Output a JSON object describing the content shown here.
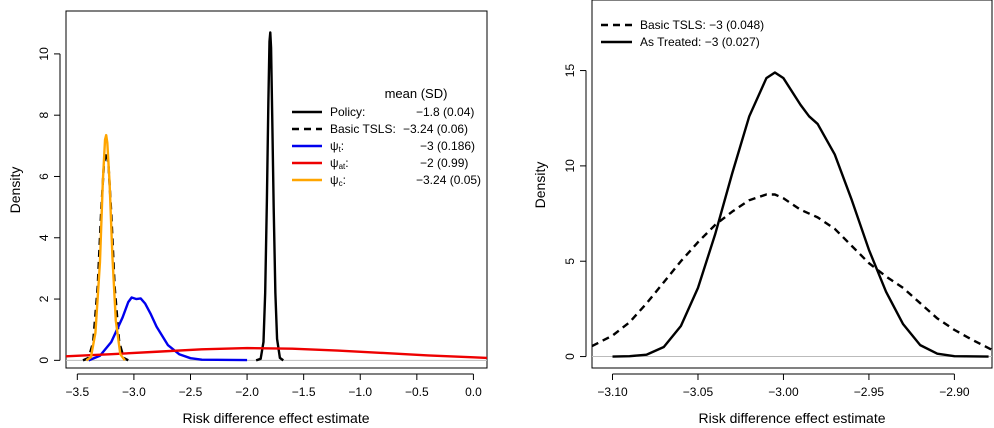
{
  "chart_data": [
    {
      "type": "line",
      "xlabel": "Risk difference effect estimate",
      "ylabel": "Density",
      "xlim": [
        -3.6,
        0.12
      ],
      "ylim": [
        -0.25,
        11.4
      ],
      "xticks": [
        -3.5,
        -3.0,
        -2.5,
        -2.0,
        -1.5,
        -1.0,
        -0.5,
        0.0
      ],
      "xtick_labels": [
        "−3.5",
        "−3.0",
        "−2.5",
        "−2.0",
        "−1.5",
        "−1.0",
        "−0.5",
        "0.0"
      ],
      "yticks": [
        0,
        2,
        4,
        6,
        8,
        10
      ],
      "ytick_labels": [
        "0",
        "2",
        "4",
        "6",
        "8",
        "10"
      ],
      "baseline": true,
      "legend_position": "top-right",
      "legend_header": "mean (SD)",
      "series": [
        {
          "name": "Policy:",
          "stat": "−1.8 (0.04)",
          "color": "#000000",
          "dash": "solid",
          "points": [
            [
              -1.92,
              0
            ],
            [
              -1.88,
              0.05
            ],
            [
              -1.855,
              0.6
            ],
            [
              -1.84,
              2.2
            ],
            [
              -1.825,
              5.2
            ],
            [
              -1.812,
              8.4
            ],
            [
              -1.802,
              10.4
            ],
            [
              -1.795,
              10.7
            ],
            [
              -1.788,
              10.2
            ],
            [
              -1.778,
              8.0
            ],
            [
              -1.765,
              5.0
            ],
            [
              -1.75,
              2.2
            ],
            [
              -1.735,
              0.7
            ],
            [
              -1.71,
              0.08
            ],
            [
              -1.68,
              0
            ]
          ]
        },
        {
          "name": "Basic TSLS:",
          "stat": "−3.24 (0.06)",
          "color": "#000000",
          "dash": "dashed",
          "points": [
            [
              -3.45,
              0
            ],
            [
              -3.4,
              0.08
            ],
            [
              -3.36,
              0.6
            ],
            [
              -3.32,
              2.4
            ],
            [
              -3.29,
              4.8
            ],
            [
              -3.265,
              6.4
            ],
            [
              -3.245,
              6.8
            ],
            [
              -3.225,
              6.4
            ],
            [
              -3.2,
              4.8
            ],
            [
              -3.17,
              2.4
            ],
            [
              -3.13,
              0.6
            ],
            [
              -3.09,
              0.08
            ],
            [
              -3.05,
              0
            ]
          ]
        },
        {
          "name": "ψt:",
          "sym": "ψ",
          "sub": "t",
          "stat": "−3 (0.186)",
          "color": "#0000ee",
          "dash": "solid",
          "points": [
            [
              -3.4,
              0
            ],
            [
              -3.3,
              0.15
            ],
            [
              -3.2,
              0.6
            ],
            [
              -3.1,
              1.4
            ],
            [
              -3.05,
              1.9
            ],
            [
              -3.02,
              2.05
            ],
            [
              -2.98,
              2.0
            ],
            [
              -2.94,
              2.02
            ],
            [
              -2.9,
              1.85
            ],
            [
              -2.85,
              1.5
            ],
            [
              -2.8,
              1.1
            ],
            [
              -2.7,
              0.5
            ],
            [
              -2.6,
              0.2
            ],
            [
              -2.5,
              0.07
            ],
            [
              -2.4,
              0.02
            ],
            [
              -2.0,
              0.01
            ]
          ]
        },
        {
          "name": "ψat:",
          "sym": "ψ",
          "sub": "at",
          "stat": "−2 (0.99)",
          "color": "#ee0000",
          "dash": "solid",
          "points": [
            [
              -3.6,
              0.13
            ],
            [
              -3.2,
              0.2
            ],
            [
              -2.8,
              0.28
            ],
            [
              -2.4,
              0.36
            ],
            [
              -2.0,
              0.4
            ],
            [
              -1.6,
              0.38
            ],
            [
              -1.2,
              0.32
            ],
            [
              -0.8,
              0.24
            ],
            [
              -0.4,
              0.16
            ],
            [
              0.0,
              0.1
            ],
            [
              0.12,
              0.08
            ]
          ]
        },
        {
          "name": "ψc:",
          "sym": "ψ",
          "sub": "c",
          "stat": "−3.24 (0.05)",
          "color": "#ffa500",
          "dash": "solid",
          "points": [
            [
              -3.42,
              0
            ],
            [
              -3.38,
              0.1
            ],
            [
              -3.34,
              0.9
            ],
            [
              -3.3,
              3.2
            ],
            [
              -3.275,
              5.8
            ],
            [
              -3.255,
              7.2
            ],
            [
              -3.245,
              7.35
            ],
            [
              -3.235,
              7.1
            ],
            [
              -3.215,
              5.8
            ],
            [
              -3.19,
              3.4
            ],
            [
              -3.16,
              1.3
            ],
            [
              -3.12,
              0.2
            ],
            [
              -3.08,
              0
            ]
          ]
        }
      ]
    },
    {
      "type": "line",
      "xlabel": "Risk difference effect estimate",
      "ylabel": "Density",
      "xlim": [
        -3.112,
        -2.878
      ],
      "ylim": [
        -0.6,
        18.7
      ],
      "xticks": [
        -3.1,
        -3.05,
        -3.0,
        -2.95,
        -2.9
      ],
      "xtick_labels": [
        "−3.10",
        "−3.05",
        "−3.00",
        "−2.95",
        "−2.90"
      ],
      "yticks": [
        0,
        5,
        10,
        15
      ],
      "ytick_labels": [
        "0",
        "5",
        "10",
        "15"
      ],
      "baseline": true,
      "legend_position": "top-left",
      "series": [
        {
          "name": "Basic TSLS: −3 (0.048)",
          "color": "#000000",
          "dash": "dashed",
          "points": [
            [
              -3.112,
              0.55
            ],
            [
              -3.1,
              1.1
            ],
            [
              -3.09,
              1.8
            ],
            [
              -3.08,
              2.8
            ],
            [
              -3.07,
              3.9
            ],
            [
              -3.06,
              5.0
            ],
            [
              -3.05,
              6.0
            ],
            [
              -3.04,
              6.9
            ],
            [
              -3.03,
              7.6
            ],
            [
              -3.02,
              8.2
            ],
            [
              -3.01,
              8.5
            ],
            [
              -3.005,
              8.5
            ],
            [
              -3.0,
              8.3
            ],
            [
              -2.99,
              7.7
            ],
            [
              -2.98,
              7.3
            ],
            [
              -2.97,
              6.7
            ],
            [
              -2.96,
              5.8
            ],
            [
              -2.95,
              4.9
            ],
            [
              -2.94,
              4.2
            ],
            [
              -2.93,
              3.6
            ],
            [
              -2.92,
              2.8
            ],
            [
              -2.91,
              2.0
            ],
            [
              -2.9,
              1.4
            ],
            [
              -2.89,
              0.9
            ],
            [
              -2.878,
              0.35
            ]
          ]
        },
        {
          "name": "As Treated: −3 (0.027)",
          "color": "#000000",
          "dash": "solid",
          "points": [
            [
              -3.1,
              0
            ],
            [
              -3.09,
              0.02
            ],
            [
              -3.08,
              0.1
            ],
            [
              -3.07,
              0.5
            ],
            [
              -3.06,
              1.6
            ],
            [
              -3.05,
              3.6
            ],
            [
              -3.04,
              6.4
            ],
            [
              -3.03,
              9.6
            ],
            [
              -3.02,
              12.6
            ],
            [
              -3.01,
              14.6
            ],
            [
              -3.005,
              14.9
            ],
            [
              -3.0,
              14.6
            ],
            [
              -2.99,
              13.2
            ],
            [
              -2.985,
              12.6
            ],
            [
              -2.98,
              12.2
            ],
            [
              -2.97,
              10.6
            ],
            [
              -2.96,
              8.2
            ],
            [
              -2.95,
              5.6
            ],
            [
              -2.94,
              3.4
            ],
            [
              -2.93,
              1.7
            ],
            [
              -2.92,
              0.6
            ],
            [
              -2.91,
              0.15
            ],
            [
              -2.9,
              0.02
            ],
            [
              -2.88,
              0
            ]
          ]
        }
      ]
    }
  ]
}
